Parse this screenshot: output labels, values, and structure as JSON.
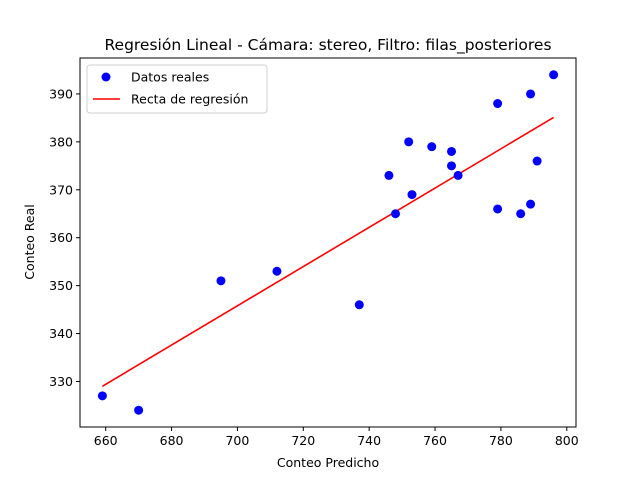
{
  "chart_data": {
    "type": "scatter",
    "title": "Regresión Lineal - Cámara: stereo, Filtro: filas_posteriores",
    "xlabel": "Conteo Predicho",
    "ylabel": "Conteo Real",
    "xlim": [
      652.2,
      802.8
    ],
    "ylim": [
      320.5,
      397.5
    ],
    "xticks": [
      660,
      680,
      700,
      720,
      740,
      760,
      780,
      800
    ],
    "yticks": [
      330,
      340,
      350,
      360,
      370,
      380,
      390
    ],
    "grid": false,
    "legend_position": "top-left",
    "legend": [
      "Datos reales",
      "Recta de regresión"
    ],
    "series": [
      {
        "name": "Datos reales",
        "kind": "scatter",
        "color": "#0000ff",
        "points": [
          {
            "x": 659,
            "y": 327
          },
          {
            "x": 670,
            "y": 324
          },
          {
            "x": 695,
            "y": 351
          },
          {
            "x": 712,
            "y": 353
          },
          {
            "x": 737,
            "y": 346
          },
          {
            "x": 746,
            "y": 373
          },
          {
            "x": 748,
            "y": 365
          },
          {
            "x": 752,
            "y": 380
          },
          {
            "x": 753,
            "y": 369
          },
          {
            "x": 759,
            "y": 379
          },
          {
            "x": 765,
            "y": 378
          },
          {
            "x": 765,
            "y": 375
          },
          {
            "x": 767,
            "y": 373
          },
          {
            "x": 779,
            "y": 388
          },
          {
            "x": 779,
            "y": 366
          },
          {
            "x": 786,
            "y": 365
          },
          {
            "x": 789,
            "y": 390
          },
          {
            "x": 789,
            "y": 367
          },
          {
            "x": 791,
            "y": 376
          },
          {
            "x": 796,
            "y": 394
          }
        ]
      },
      {
        "name": "Recta de regresión",
        "kind": "line",
        "color": "#ff0000",
        "points": [
          {
            "x": 659,
            "y": 329.0
          },
          {
            "x": 796,
            "y": 385.1
          }
        ]
      }
    ]
  }
}
